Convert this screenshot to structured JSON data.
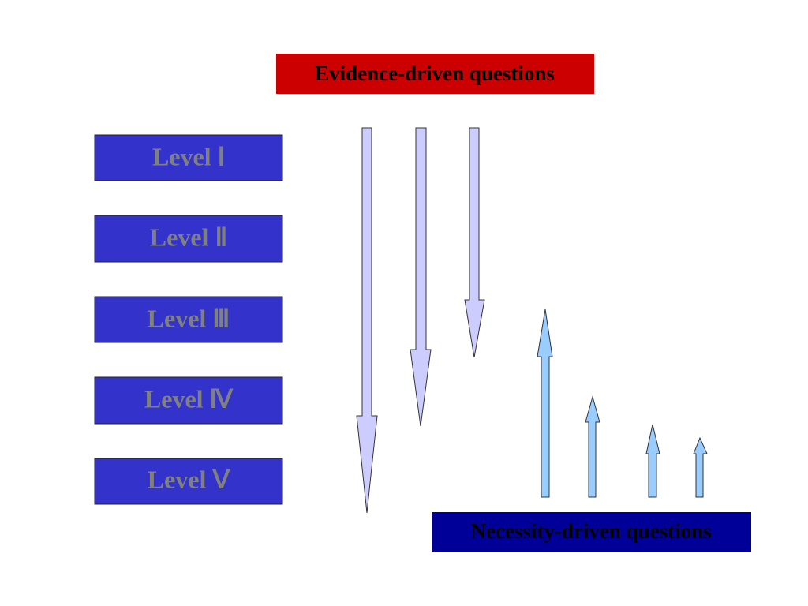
{
  "top_label": "Evidence-driven questions",
  "bottom_label": "Necessity-driven questions",
  "levels": [
    "Level Ⅰ",
    "Level Ⅱ",
    "Level Ⅲ",
    "Level Ⅳ",
    "Level Ⅴ"
  ]
}
